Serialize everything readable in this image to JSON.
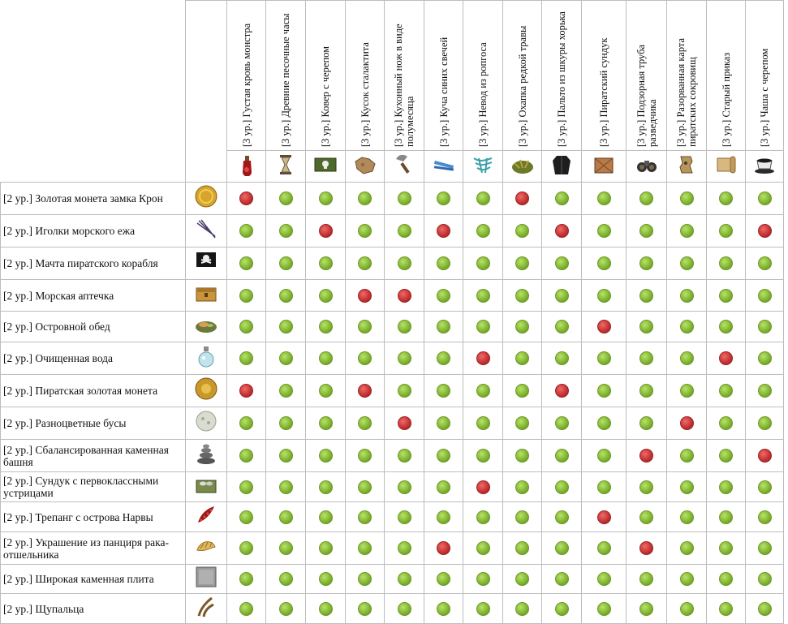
{
  "colors": {
    "ok": "#82b632",
    "bad": "#c73434",
    "border": "#bdbdbd"
  },
  "columns": [
    {
      "label": "[3 ур.] Густая кровь монстра",
      "icon": "blood-vial-icon"
    },
    {
      "label": "[3 ур.] Древние песочные часы",
      "icon": "hourglass-icon"
    },
    {
      "label": "[3 ур.] Ковер с черепом",
      "icon": "skull-carpet-icon"
    },
    {
      "label": "[3 ур.] Кусок сталактита",
      "icon": "stalactite-icon"
    },
    {
      "label": "[3 ур.] Кухонный нож в виде полумесяца",
      "icon": "crescent-knife-icon"
    },
    {
      "label": "[3 ур.] Куча синих свечей",
      "icon": "blue-candles-icon"
    },
    {
      "label": "[3 ур.] Невод из ропгоса",
      "icon": "fishing-net-icon"
    },
    {
      "label": "[3 ур.] Охапка редкой травы",
      "icon": "rare-herbs-icon"
    },
    {
      "label": "[3 ур.] Пальто из шкуры хорька",
      "icon": "fur-coat-icon"
    },
    {
      "label": "[3 ур.] Пиратский сундук",
      "icon": "pirate-chest-icon"
    },
    {
      "label": "[3 ур.] Подзорная труба разведчика",
      "icon": "binoculars-icon"
    },
    {
      "label": "[3 ур.] Разорванная карта пиратских сокровищ",
      "icon": "torn-map-icon"
    },
    {
      "label": "[3 ур.] Старый приказ",
      "icon": "old-scroll-icon"
    },
    {
      "label": "[3 ур.] Чаша с черепом",
      "icon": "skull-cup-icon"
    }
  ],
  "rows": [
    {
      "label": "[2 ур.] Золотая монета замка Крон",
      "icon": "gold-coin-icon",
      "marks": [
        "r",
        "g",
        "g",
        "g",
        "g",
        "g",
        "g",
        "r",
        "g",
        "g",
        "g",
        "g",
        "g",
        "g"
      ]
    },
    {
      "label": "[2 ур.] Иголки морского ежа",
      "icon": "urchin-needles-icon",
      "marks": [
        "g",
        "g",
        "r",
        "g",
        "g",
        "r",
        "g",
        "g",
        "r",
        "g",
        "g",
        "g",
        "g",
        "r"
      ]
    },
    {
      "label": "[2 ур.] Мачта пиратского корабля",
      "icon": "pirate-flag-icon",
      "marks": [
        "g",
        "g",
        "g",
        "g",
        "g",
        "g",
        "g",
        "g",
        "g",
        "g",
        "g",
        "g",
        "g",
        "g"
      ]
    },
    {
      "label": "[2 ур.] Морская аптечка",
      "icon": "medkit-chest-icon",
      "marks": [
        "g",
        "g",
        "g",
        "r",
        "r",
        "g",
        "g",
        "g",
        "g",
        "g",
        "g",
        "g",
        "g",
        "g"
      ]
    },
    {
      "label": "[2 ур.] Островной обед",
      "icon": "island-lunch-icon",
      "marks": [
        "g",
        "g",
        "g",
        "g",
        "g",
        "g",
        "g",
        "g",
        "g",
        "r",
        "g",
        "g",
        "g",
        "g"
      ]
    },
    {
      "label": "[2 ур.] Очищенная вода",
      "icon": "water-flask-icon",
      "marks": [
        "g",
        "g",
        "g",
        "g",
        "g",
        "g",
        "r",
        "g",
        "g",
        "g",
        "g",
        "g",
        "r",
        "g"
      ]
    },
    {
      "label": "[2 ур.] Пиратская золотая монета",
      "icon": "pirate-coin-icon",
      "marks": [
        "r",
        "g",
        "g",
        "r",
        "g",
        "g",
        "g",
        "g",
        "r",
        "g",
        "g",
        "g",
        "g",
        "g"
      ]
    },
    {
      "label": "[2 ур.] Разноцветные бусы",
      "icon": "beads-icon",
      "marks": [
        "g",
        "g",
        "g",
        "g",
        "r",
        "g",
        "g",
        "g",
        "g",
        "g",
        "g",
        "r",
        "g",
        "g"
      ]
    },
    {
      "label": "[2 ур.] Сбалансированная каменная башня",
      "icon": "stone-tower-icon",
      "marks": [
        "g",
        "g",
        "g",
        "g",
        "g",
        "g",
        "g",
        "g",
        "g",
        "g",
        "r",
        "g",
        "g",
        "r"
      ]
    },
    {
      "label": "[2 ур.] Сундук с первоклассными устрицами",
      "icon": "oyster-chest-icon",
      "marks": [
        "g",
        "g",
        "g",
        "g",
        "g",
        "g",
        "r",
        "g",
        "g",
        "g",
        "g",
        "g",
        "g",
        "g"
      ]
    },
    {
      "label": "[2 ур.] Трепанг с острова Нарвы",
      "icon": "sea-cucumber-icon",
      "marks": [
        "g",
        "g",
        "g",
        "g",
        "g",
        "g",
        "g",
        "g",
        "g",
        "r",
        "g",
        "g",
        "g",
        "g"
      ]
    },
    {
      "label": "[2 ур.] Украшение из панциря рака-отшельника",
      "icon": "shell-ornament-icon",
      "marks": [
        "g",
        "g",
        "g",
        "g",
        "g",
        "r",
        "g",
        "g",
        "g",
        "g",
        "r",
        "g",
        "g",
        "g"
      ]
    },
    {
      "label": "[2 ур.] Широкая каменная плита",
      "icon": "stone-slab-icon",
      "marks": [
        "g",
        "g",
        "g",
        "g",
        "g",
        "g",
        "g",
        "g",
        "g",
        "g",
        "g",
        "g",
        "g",
        "g"
      ]
    },
    {
      "label": "[2 ур.] Щупальца",
      "icon": "tentacles-icon",
      "marks": [
        "g",
        "g",
        "g",
        "g",
        "g",
        "g",
        "g",
        "g",
        "g",
        "g",
        "g",
        "g",
        "g",
        "g"
      ]
    }
  ]
}
